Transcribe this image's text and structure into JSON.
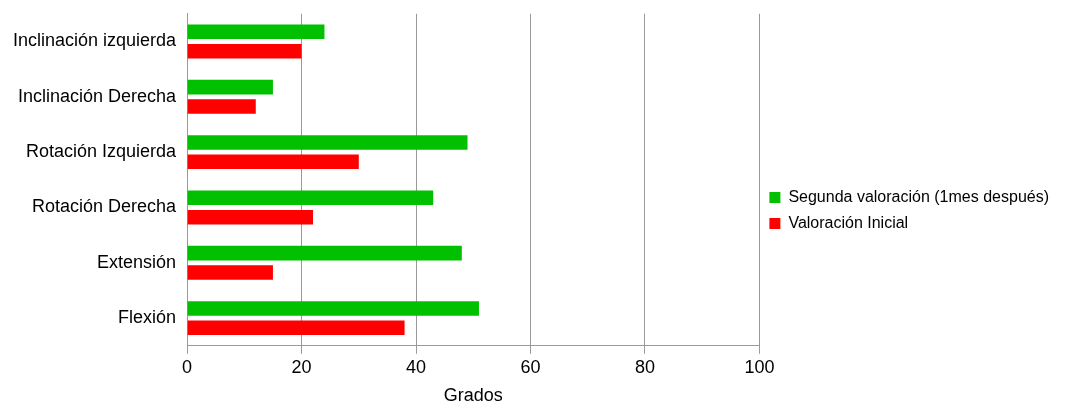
{
  "chart_data": {
    "type": "bar",
    "orientation": "horizontal",
    "xlabel": "Grados",
    "categories": [
      "Inclinación izquierda",
      "Inclinación Derecha",
      "Rotación Izquierda",
      "Rotación Derecha",
      "Extensión",
      "Flexión"
    ],
    "series": [
      {
        "name": "Segunda valoración (1mes después)",
        "color": "#00c000",
        "values": [
          24,
          15,
          49,
          43,
          48,
          51
        ]
      },
      {
        "name": "Valoración Inicial",
        "color": "#ff0000",
        "values": [
          20,
          12,
          30,
          22,
          15,
          38
        ]
      }
    ],
    "xlim": [
      0,
      100
    ],
    "xticks": [
      0,
      20,
      40,
      60,
      80,
      100
    ],
    "grid": "x",
    "legend": "right"
  }
}
